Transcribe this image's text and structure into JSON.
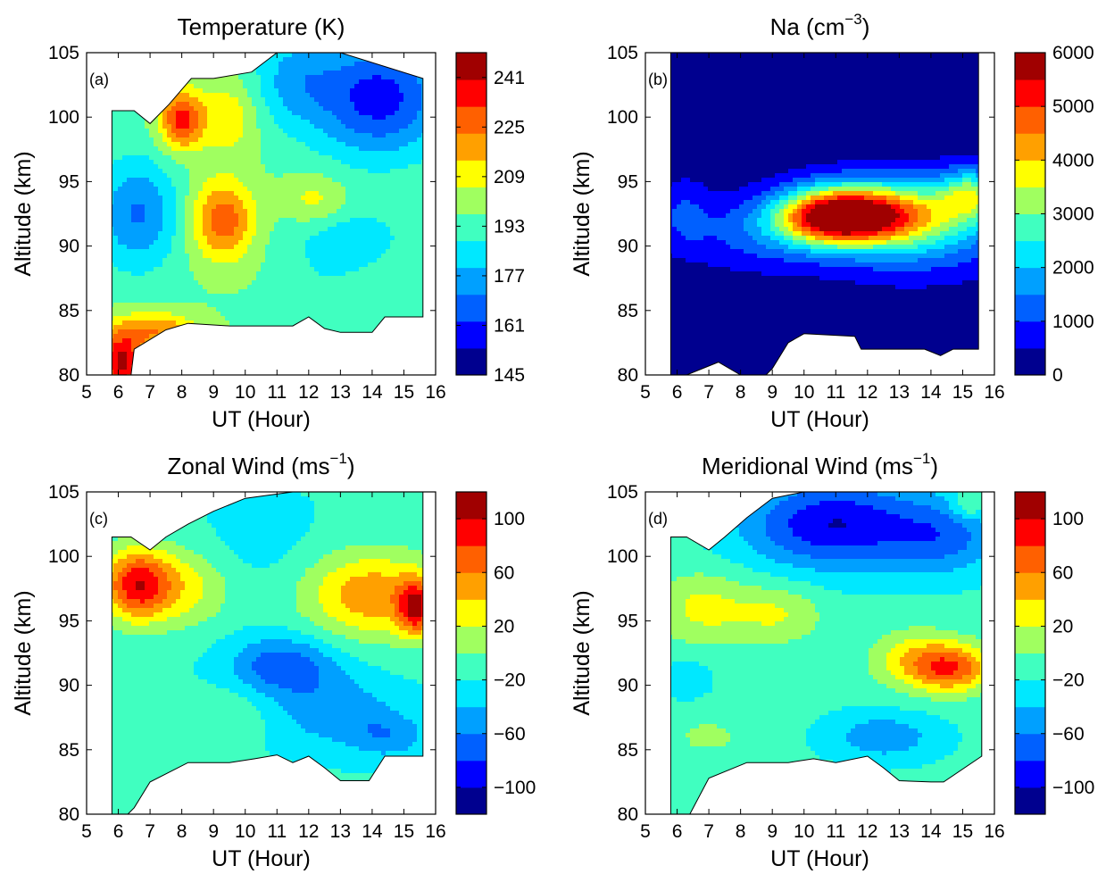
{
  "colormap": [
    "#00008f",
    "#0000ff",
    "#0060ff",
    "#00a0ff",
    "#00e8ff",
    "#40ffc0",
    "#a0ff60",
    "#ffff00",
    "#ffa000",
    "#ff6000",
    "#ff0000",
    "#a00000"
  ],
  "chart_data": [
    {
      "type": "heatmap",
      "label": "(a)",
      "title": "Temperature (K)",
      "xlabel": "UT (Hour)",
      "ylabel": "Altitude (km)",
      "xlim": [
        5,
        16
      ],
      "ylim": [
        80,
        105
      ],
      "xticks": [
        "5",
        "6",
        "7",
        "8",
        "9",
        "10",
        "11",
        "12",
        "13",
        "14",
        "15",
        "16"
      ],
      "yticks": [
        "80",
        "85",
        "90",
        "95",
        "100",
        "105"
      ],
      "colorbar": {
        "range": [
          145,
          249
        ],
        "ticks": [
          "145",
          "161",
          "177",
          "193",
          "209",
          "225",
          "241"
        ]
      },
      "blobs": [
        {
          "x": 6.6,
          "y": 92.5,
          "value": 170,
          "sx": 0.9,
          "sy": 3.0
        },
        {
          "x": 9.3,
          "y": 92.0,
          "value": 229,
          "sx": 0.7,
          "sy": 2.2
        },
        {
          "x": 8.0,
          "y": 99.8,
          "value": 236,
          "sx": 0.5,
          "sy": 1.6
        },
        {
          "x": 14.2,
          "y": 101.5,
          "value": 158,
          "sx": 1.5,
          "sy": 3.2
        },
        {
          "x": 12.2,
          "y": 93.5,
          "value": 210,
          "sx": 0.7,
          "sy": 1.4
        },
        {
          "x": 6.1,
          "y": 81.0,
          "value": 243,
          "sx": 0.5,
          "sy": 1.6
        },
        {
          "x": 7.2,
          "y": 83.5,
          "value": 222,
          "sx": 0.9,
          "sy": 1.0
        },
        {
          "x": 13.2,
          "y": 90.5,
          "value": 182,
          "sx": 1.3,
          "sy": 1.8
        },
        {
          "x": 12.5,
          "y": 87.5,
          "value": 192,
          "sx": 0.9,
          "sy": 1.1
        },
        {
          "x": 11.5,
          "y": 103.0,
          "value": 180,
          "sx": 0.9,
          "sy": 2.5
        },
        {
          "x": 9.5,
          "y": 100.0,
          "value": 212,
          "sx": 0.6,
          "sy": 2.0
        }
      ],
      "base": 196
    },
    {
      "type": "heatmap",
      "label": "(b)",
      "title": "Na (cm",
      "title_sup": "−3",
      "title_end": ")",
      "xlabel": "UT (Hour)",
      "ylabel": "Altitude (km)",
      "xlim": [
        5,
        16
      ],
      "ylim": [
        80,
        105
      ],
      "xticks": [
        "5",
        "6",
        "7",
        "8",
        "9",
        "10",
        "11",
        "12",
        "13",
        "14",
        "15",
        "16"
      ],
      "yticks": [
        "80",
        "85",
        "90",
        "95",
        "100",
        "105"
      ],
      "colorbar": {
        "range": [
          0,
          6000
        ],
        "ticks": [
          "0",
          "1000",
          "2000",
          "3000",
          "4000",
          "5000",
          "6000"
        ]
      },
      "blobs": [
        {
          "x": 10.8,
          "y": 92.3,
          "value": 4300,
          "sx": 1.2,
          "sy": 1.5
        },
        {
          "x": 12.5,
          "y": 92.5,
          "value": 3200,
          "sx": 1.6,
          "sy": 1.7
        },
        {
          "x": 13.5,
          "y": 91.5,
          "value": 1900,
          "sx": 2.2,
          "sy": 2.6
        },
        {
          "x": 8.5,
          "y": 91.0,
          "value": 1100,
          "sx": 1.6,
          "sy": 2.0
        },
        {
          "x": 6.2,
          "y": 92.5,
          "value": 900,
          "sx": 0.6,
          "sy": 2.0
        },
        {
          "x": 15.3,
          "y": 94.0,
          "value": 2500,
          "sx": 0.7,
          "sy": 1.4
        }
      ],
      "base": 150
    },
    {
      "type": "heatmap",
      "label": "(c)",
      "title": "Zonal Wind (ms",
      "title_sup": "−1",
      "title_end": ")",
      "xlabel": "UT (Hour)",
      "ylabel": "Altitude (km)",
      "xlim": [
        5,
        16
      ],
      "ylim": [
        80,
        105
      ],
      "xticks": [
        "5",
        "6",
        "7",
        "8",
        "9",
        "10",
        "11",
        "12",
        "13",
        "14",
        "15",
        "16"
      ],
      "yticks": [
        "80",
        "85",
        "90",
        "95",
        "100",
        "105"
      ],
      "colorbar": {
        "range": [
          -120,
          120
        ],
        "ticks": [
          "−100",
          "−60",
          "−20",
          "20",
          "60",
          "100"
        ],
        "tick_values": [
          -100,
          -60,
          -20,
          20,
          60,
          100
        ]
      },
      "blobs": [
        {
          "x": 6.6,
          "y": 97.8,
          "value": 95,
          "sx": 0.8,
          "sy": 2.0
        },
        {
          "x": 8.3,
          "y": 97.5,
          "value": 20,
          "sx": 0.9,
          "sy": 2.2
        },
        {
          "x": 11.2,
          "y": 91.5,
          "value": -75,
          "sx": 1.2,
          "sy": 1.6
        },
        {
          "x": 12.8,
          "y": 88.0,
          "value": -55,
          "sx": 1.4,
          "sy": 1.8
        },
        {
          "x": 14.5,
          "y": 86.0,
          "value": -50,
          "sx": 0.9,
          "sy": 1.2
        },
        {
          "x": 14.0,
          "y": 97.0,
          "value": 55,
          "sx": 1.5,
          "sy": 2.4
        },
        {
          "x": 15.4,
          "y": 96.0,
          "value": 75,
          "sx": 0.4,
          "sy": 1.5
        },
        {
          "x": 10.5,
          "y": 101.5,
          "value": -30,
          "sx": 1.2,
          "sy": 2.2
        },
        {
          "x": 6.8,
          "y": 86.5,
          "value": -5,
          "sx": 1.0,
          "sy": 2.0
        },
        {
          "x": 9.5,
          "y": 88.0,
          "value": 0,
          "sx": 1.0,
          "sy": 1.4
        }
      ],
      "base": -18
    },
    {
      "type": "heatmap",
      "label": "(d)",
      "title": "Meridional Wind (ms",
      "title_sup": "−1",
      "title_end": ")",
      "xlabel": "UT (Hour)",
      "ylabel": "Altitude (km)",
      "xlim": [
        5,
        16
      ],
      "ylim": [
        80,
        105
      ],
      "xticks": [
        "5",
        "6",
        "7",
        "8",
        "9",
        "10",
        "11",
        "12",
        "13",
        "14",
        "15",
        "16"
      ],
      "yticks": [
        "80",
        "85",
        "90",
        "95",
        "100",
        "105"
      ],
      "colorbar": {
        "range": [
          -120,
          120
        ],
        "ticks": [
          "−100",
          "−60",
          "−20",
          "20",
          "60",
          "100"
        ],
        "tick_values": [
          -100,
          -60,
          -20,
          20,
          60,
          100
        ]
      },
      "blobs": [
        {
          "x": 11.0,
          "y": 102.5,
          "value": -100,
          "sx": 2.0,
          "sy": 2.4
        },
        {
          "x": 14.5,
          "y": 101.5,
          "value": -60,
          "sx": 1.2,
          "sy": 2.0
        },
        {
          "x": 6.8,
          "y": 96.0,
          "value": 25,
          "sx": 1.1,
          "sy": 2.0
        },
        {
          "x": 9.2,
          "y": 95.5,
          "value": 20,
          "sx": 1.0,
          "sy": 1.6
        },
        {
          "x": 14.7,
          "y": 91.3,
          "value": 65,
          "sx": 0.9,
          "sy": 1.3
        },
        {
          "x": 13.5,
          "y": 92.0,
          "value": 30,
          "sx": 1.0,
          "sy": 1.6
        },
        {
          "x": 12.5,
          "y": 86.0,
          "value": -55,
          "sx": 1.2,
          "sy": 1.3
        },
        {
          "x": 6.3,
          "y": 90.5,
          "value": -40,
          "sx": 0.5,
          "sy": 1.0
        },
        {
          "x": 7.0,
          "y": 86.0,
          "value": 5,
          "sx": 0.9,
          "sy": 1.2
        },
        {
          "x": 15.2,
          "y": 104.0,
          "value": 20,
          "sx": 0.4,
          "sy": 0.8
        }
      ],
      "base": -15
    }
  ]
}
